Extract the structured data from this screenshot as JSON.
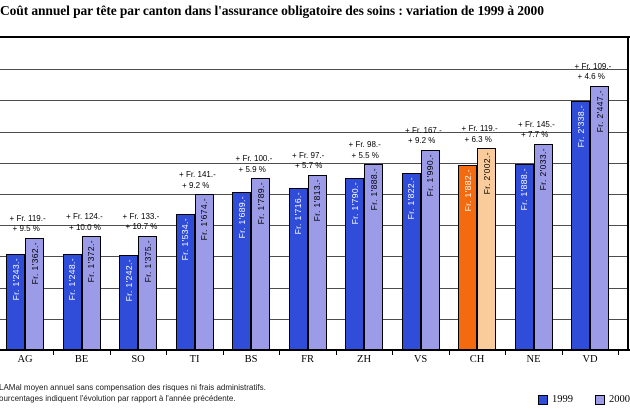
{
  "title": "Coût annuel par tête par canton dans l'assurance obligatoire des soins : variation de 1999 à 2000",
  "footnotes": [
    "LAMal moyen annuel sans compensation des risques ni frais administratifs.",
    "ourcentages indiquent l'évolution par rapport à l'année précédente."
  ],
  "legend": {
    "items": [
      {
        "label": "1999",
        "color_key": "series_1999"
      },
      {
        "label": "2000",
        "color_key": "series_2000"
      }
    ]
  },
  "colors": {
    "series_1999": "#2F4DD8",
    "series_2000": "#9B9BE8",
    "highlight_1999": "#F36B0E",
    "highlight_2000": "#FBCC9B",
    "grid": "#4d4d4d",
    "axis": "#000000",
    "label_on_dark": "#ffffff",
    "label_on_light": "#000000"
  },
  "chart_data": {
    "type": "bar",
    "title": "Coût annuel par tête par canton dans l'assurance obligatoire des soins : variation de 1999 à 2000",
    "categories": [
      "AG",
      "BE",
      "SO",
      "TI",
      "BS",
      "FR",
      "ZH",
      "VS",
      "CH",
      "NE",
      "VD"
    ],
    "series": [
      {
        "name": "1999",
        "values": [
          1243,
          1248,
          1242,
          1534,
          1689,
          1716,
          1790,
          1822,
          1882,
          1888,
          2338
        ],
        "labels": [
          "Fr. 1'243.-",
          "Fr. 1'248.-",
          "Fr. 1'242.-",
          "Fr. 1'534.-",
          "Fr. 1'689.-",
          "Fr. 1'716.-",
          "Fr. 1'790.-",
          "Fr. 1'822.-",
          "Fr. 1'882.-",
          "Fr. 1'888.-",
          "Fr. 2'338.-"
        ]
      },
      {
        "name": "2000",
        "values": [
          1362,
          1372,
          1375,
          1674,
          1789,
          1813,
          1888,
          1990,
          2002,
          2033,
          2447
        ],
        "labels": [
          "Fr. 1'362.-",
          "Fr. 1'372.-",
          "Fr. 1'375.-",
          "Fr. 1'674.-",
          "Fr. 1'789.-",
          "Fr. 1'813.-",
          "Fr. 1'888.-",
          "Fr. 1'990.-",
          "Fr. 2'002.-",
          "Fr. 2'033.-",
          "Fr. 2'447.-"
        ]
      }
    ],
    "annotations": [
      {
        "category": "AG",
        "amount": "+ Fr. 119.-",
        "percent": "+ 9.5 %"
      },
      {
        "category": "BE",
        "amount": "+ Fr. 124.-",
        "percent": "+ 10.0 %"
      },
      {
        "category": "SO",
        "amount": "+ Fr. 133.-",
        "percent": "+ 10.7 %"
      },
      {
        "category": "TI",
        "amount": "+ Fr. 141.-",
        "percent": "+ 9.2 %"
      },
      {
        "category": "BS",
        "amount": "+ Fr. 100.-",
        "percent": "+ 5.9 %"
      },
      {
        "category": "FR",
        "amount": "+ Fr. 97.-",
        "percent": "+ 5.7 %"
      },
      {
        "category": "ZH",
        "amount": "+ Fr. 98.-",
        "percent": "+ 5.5 %"
      },
      {
        "category": "VS",
        "amount": "+ Fr. 167.-",
        "percent": "+ 9.2 %"
      },
      {
        "category": "CH",
        "amount": "+ Fr. 119.-",
        "percent": "+ 6.3 %"
      },
      {
        "category": "NE",
        "amount": "+ Fr. 145.-",
        "percent": "+ 7.7 %"
      },
      {
        "category": "VD",
        "amount": "+ Fr. 109.-",
        "percent": "+ 4.6 %"
      }
    ],
    "highlight_category": "CH",
    "xlabel": "",
    "ylabel": "",
    "ylim": [
      560,
      2790
    ],
    "y_axis_labels_visible": false,
    "grid": true,
    "legend_position": "bottom-right"
  }
}
